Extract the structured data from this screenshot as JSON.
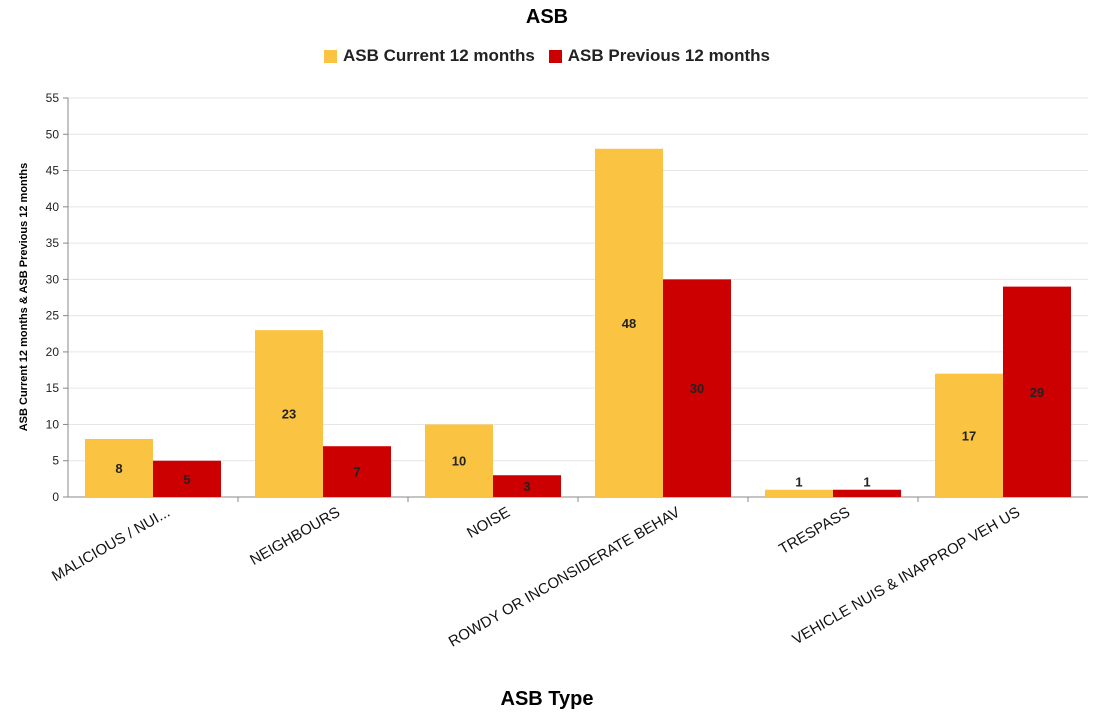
{
  "chart_data": {
    "type": "bar",
    "title": "ASB",
    "xlabel": "ASB Type",
    "ylabel": "ASB Current 12 months & ASB Previous 12 months",
    "ylim": [
      0,
      55
    ],
    "yticks": [
      0,
      5,
      10,
      15,
      20,
      25,
      30,
      35,
      40,
      45,
      50,
      55
    ],
    "grid": true,
    "legend_position": "top",
    "categories": [
      "MALICIOUS / NUI...",
      "NEIGHBOURS",
      "NOISE",
      "ROWDY OR INCONSIDERATE BEHAV",
      "TRESPASS",
      "VEHICLE NUIS & INAPPROP VEH US"
    ],
    "series": [
      {
        "name": "ASB Current 12 months",
        "color": "#FBC342",
        "values": [
          8,
          23,
          10,
          48,
          1,
          17
        ]
      },
      {
        "name": "ASB Previous 12 months",
        "color": "#CC0000",
        "values": [
          5,
          7,
          3,
          30,
          1,
          29
        ]
      }
    ]
  }
}
